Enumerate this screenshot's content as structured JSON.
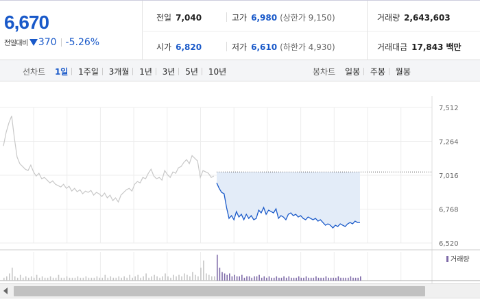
{
  "quote": {
    "price": "6,670",
    "change_label": "전일대비",
    "change_amount": "370",
    "change_percent": "-5.26%",
    "prev_close_label": "전일",
    "prev_close": "7,040",
    "open_label": "시가",
    "open": "6,820",
    "high_label": "고가",
    "high": "6,980",
    "upper_limit": "(상한가 9,150)",
    "low_label": "저가",
    "low": "6,610",
    "lower_limit": "(하한가 4,930)",
    "volume_label": "거래량",
    "volume": "2,643,603",
    "amount_label": "거래대금",
    "amount": "17,843",
    "amount_unit": "백만"
  },
  "tabs": {
    "line_label": "선차트",
    "line_tabs": [
      "1일",
      "1주일",
      "3개월",
      "1년",
      "3년",
      "5년",
      "10년"
    ],
    "candle_label": "봉차트",
    "candle_tabs": [
      "일봉",
      "주봉",
      "월봉"
    ]
  },
  "colors": {
    "accent": "#1959c9",
    "prev_line": "#c8c8c8",
    "fill": "#e3ecf8",
    "volume": "#7e6aa8"
  },
  "chart_data": [
    {
      "type": "line",
      "yticks": [
        7512,
        7264,
        7016,
        6768,
        6520
      ],
      "ylim": [
        6520,
        7512
      ],
      "reference_close": 7040,
      "series": [
        {
          "values": [
            7230,
            7330,
            7400,
            7450,
            7290,
            7150,
            7100,
            7080,
            7060,
            7050,
            7090,
            7040,
            7010,
            7030,
            6990,
            7000,
            6980,
            6960,
            6975,
            6950,
            6940,
            6930,
            6950,
            6920,
            6935,
            6900,
            6920,
            6895,
            6910,
            6880,
            6900,
            6890,
            6905,
            6870,
            6890,
            6880,
            6860,
            6885,
            6850,
            6870,
            6830,
            6850,
            6820,
            6870,
            6890,
            6910,
            6920,
            6900,
            6950,
            6970,
            6960,
            7000,
            6990,
            7030,
            7060,
            7010,
            6990,
            7000,
            6980,
            7050,
            7020,
            7000,
            7040,
            7030,
            7070,
            7080,
            7110,
            7130,
            7100,
            7160,
            7140,
            7120,
            7000,
            7050,
            7040,
            7030,
            7000,
            7010
          ]
        },
        {
          "values": [
            6960,
            6920,
            6890,
            6880,
            6780,
            6700,
            6720,
            6690,
            6750,
            6710,
            6730,
            6690,
            6730,
            6700,
            6720,
            6690,
            6700,
            6760,
            6740,
            6780,
            6730,
            6760,
            6750,
            6740,
            6770,
            6700,
            6720,
            6710,
            6690,
            6730,
            6740,
            6720,
            6730,
            6710,
            6720,
            6700,
            6690,
            6710,
            6700,
            6690,
            6700,
            6680,
            6690,
            6670,
            6650,
            6660,
            6650,
            6630,
            6650,
            6640,
            6660,
            6650,
            6640,
            6660,
            6670,
            6660,
            6680,
            6670,
            6670
          ]
        }
      ]
    },
    {
      "type": "bar",
      "legend": "거래량",
      "series": [
        {
          "values": [
            2,
            3,
            5,
            9,
            3,
            2,
            4,
            2,
            3,
            2,
            3,
            2,
            4,
            2,
            3,
            2,
            2,
            3,
            2,
            2,
            4,
            2,
            2,
            3,
            2,
            2,
            2,
            3,
            2,
            2,
            3,
            2,
            2,
            2,
            3,
            2,
            2,
            4,
            2,
            3,
            2,
            2,
            3,
            2,
            3,
            2,
            4,
            2,
            3,
            4,
            2,
            3,
            5,
            2,
            3,
            4,
            3,
            2,
            3,
            5,
            3,
            2,
            4,
            3,
            4,
            3,
            5,
            4,
            3,
            6,
            4,
            3,
            9,
            14,
            5,
            4,
            3,
            3
          ]
        },
        {
          "values": [
            18,
            9,
            6,
            5,
            4,
            5,
            3,
            4,
            3,
            3,
            4,
            2,
            3,
            3,
            2,
            3,
            3,
            4,
            2,
            3,
            2,
            3,
            2,
            2,
            3,
            2,
            2,
            3,
            2,
            3,
            2,
            2,
            2,
            3,
            2,
            2,
            3,
            2,
            2,
            2,
            3,
            2,
            2,
            2,
            3,
            2,
            2,
            2,
            2,
            3,
            2,
            2,
            2,
            2,
            3,
            2,
            2,
            2,
            3
          ]
        }
      ]
    }
  ]
}
